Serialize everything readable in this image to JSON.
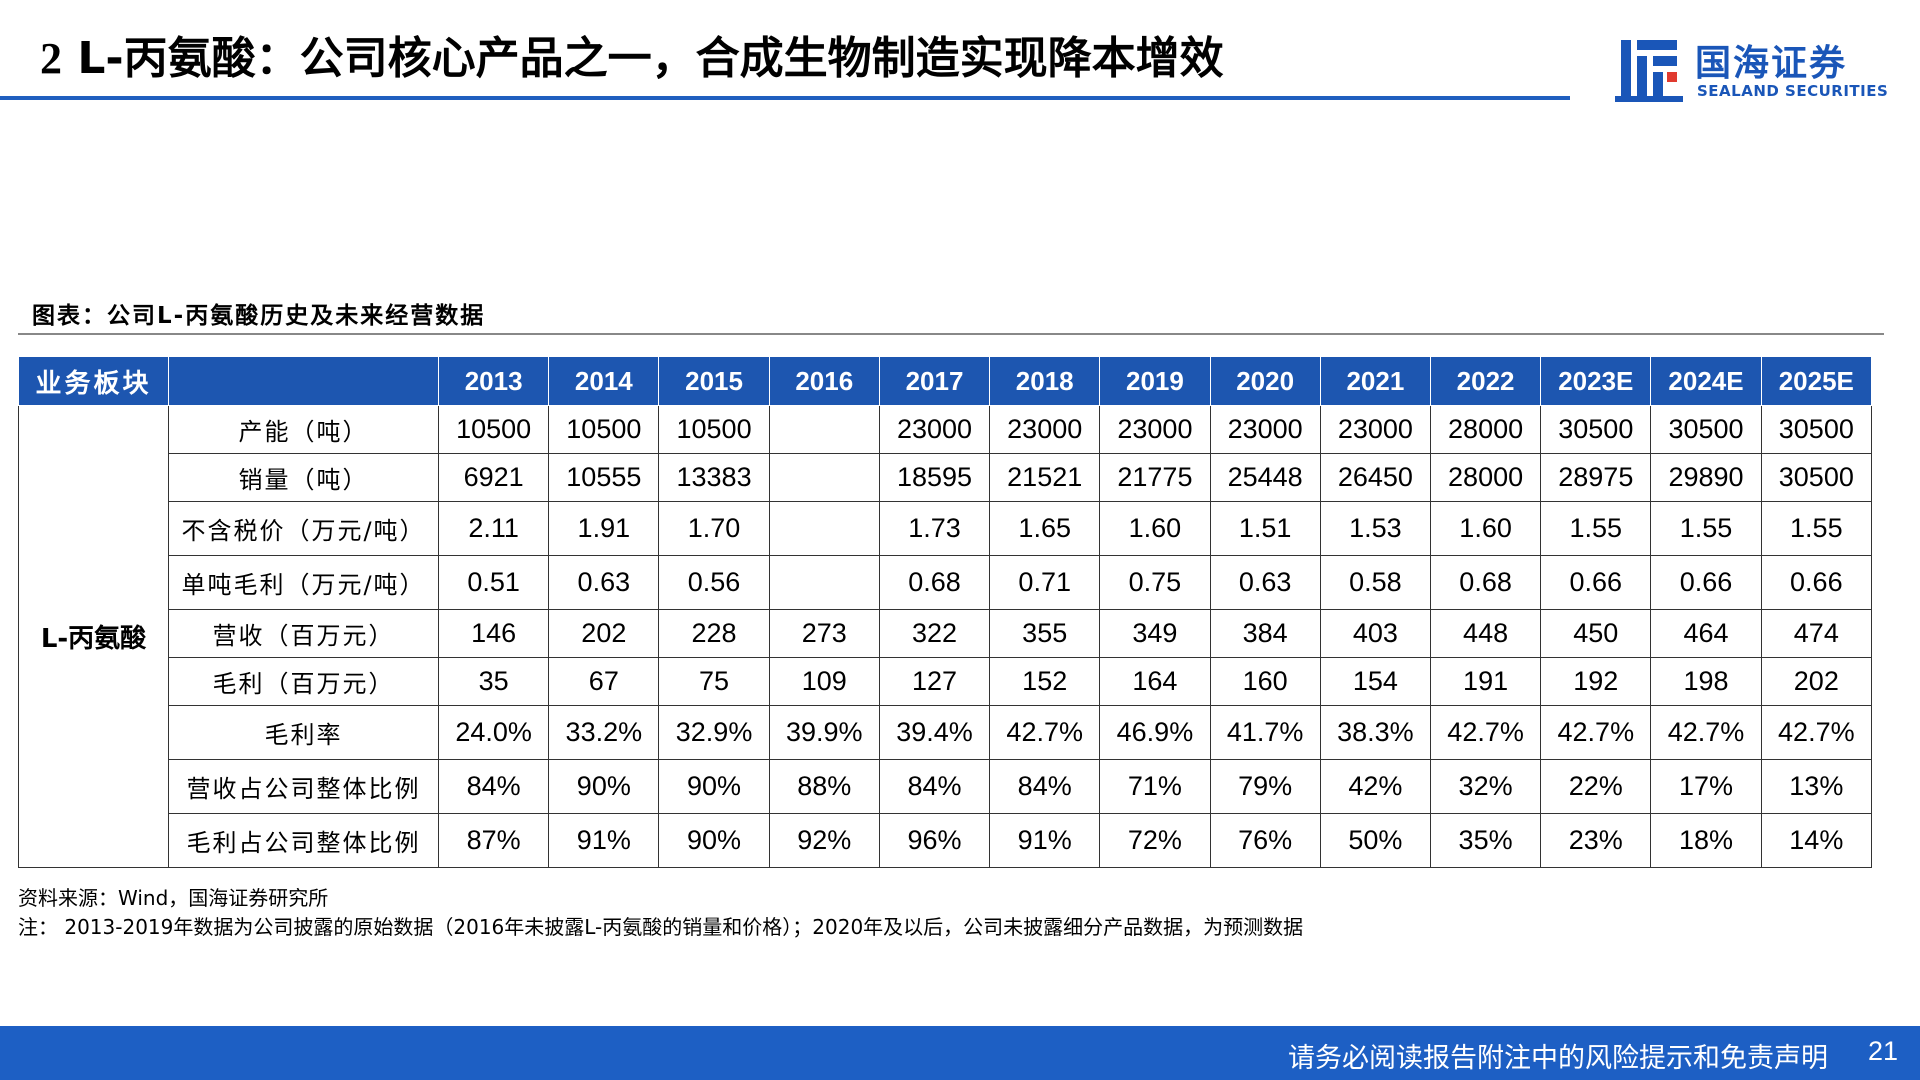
{
  "header": {
    "title_num": "2",
    "title_text": "L-丙氨酸：公司核心产品之一，合成生物制造实现降本增效",
    "logo_cn": "国海证券",
    "logo_en": "SEALAND SECURITIES",
    "logo_icon": "sealand-logo-icon",
    "accent_color": "#1f5fbf"
  },
  "figure": {
    "caption": "图表：公司L-丙氨酸历史及未来经营数据"
  },
  "table": {
    "category_header": "业务板块",
    "segment": "L-丙氨酸",
    "years": [
      "2013",
      "2014",
      "2015",
      "2016",
      "2017",
      "2018",
      "2019",
      "2020",
      "2021",
      "2022",
      "2023E",
      "2024E",
      "2025E"
    ],
    "rows": [
      {
        "label": "产能（吨）",
        "values": [
          "10500",
          "10500",
          "10500",
          "",
          "23000",
          "23000",
          "23000",
          "23000",
          "23000",
          "28000",
          "30500",
          "30500",
          "30500"
        ]
      },
      {
        "label": "销量（吨）",
        "values": [
          "6921",
          "10555",
          "13383",
          "",
          "18595",
          "21521",
          "21775",
          "25448",
          "26450",
          "28000",
          "28975",
          "29890",
          "30500"
        ]
      },
      {
        "label": "不含税价（万元/吨）",
        "values": [
          "2.11",
          "1.91",
          "1.70",
          "",
          "1.73",
          "1.65",
          "1.60",
          "1.51",
          "1.53",
          "1.60",
          "1.55",
          "1.55",
          "1.55"
        ]
      },
      {
        "label": "单吨毛利（万元/吨）",
        "values": [
          "0.51",
          "0.63",
          "0.56",
          "",
          "0.68",
          "0.71",
          "0.75",
          "0.63",
          "0.58",
          "0.68",
          "0.66",
          "0.66",
          "0.66"
        ]
      },
      {
        "label": "营收（百万元）",
        "values": [
          "146",
          "202",
          "228",
          "273",
          "322",
          "355",
          "349",
          "384",
          "403",
          "448",
          "450",
          "464",
          "474"
        ]
      },
      {
        "label": "毛利（百万元）",
        "values": [
          "35",
          "67",
          "75",
          "109",
          "127",
          "152",
          "164",
          "160",
          "154",
          "191",
          "192",
          "198",
          "202"
        ]
      },
      {
        "label": "毛利率",
        "values": [
          "24.0%",
          "33.2%",
          "32.9%",
          "39.9%",
          "39.4%",
          "42.7%",
          "46.9%",
          "41.7%",
          "38.3%",
          "42.7%",
          "42.7%",
          "42.7%",
          "42.7%"
        ]
      },
      {
        "label": "营收占公司整体比例",
        "values": [
          "84%",
          "90%",
          "90%",
          "88%",
          "84%",
          "84%",
          "71%",
          "79%",
          "42%",
          "32%",
          "22%",
          "17%",
          "13%"
        ]
      },
      {
        "label": "毛利占公司整体比例",
        "values": [
          "87%",
          "91%",
          "90%",
          "92%",
          "96%",
          "91%",
          "72%",
          "76%",
          "50%",
          "35%",
          "23%",
          "18%",
          "14%"
        ]
      }
    ]
  },
  "notes": {
    "source": "资料来源：Wind，国海证券研究所",
    "note": "注： 2013-2019年数据为公司披露的原始数据（2016年未披露L-丙氨酸的销量和价格）；2020年及以后，公司未披露细分产品数据，为预测数据"
  },
  "footer": {
    "disclaimer": "请务必阅读报告附注中的风险提示和免责声明",
    "page_number": "21"
  }
}
